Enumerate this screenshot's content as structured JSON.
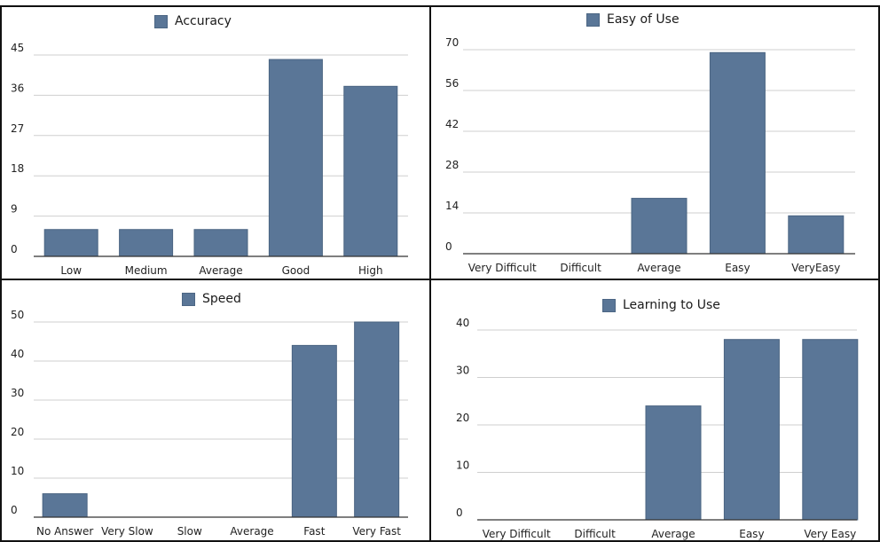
{
  "colors": {
    "bar": "#5a7697",
    "bar_edge": "#4a6482",
    "grid": "#cfcfcf",
    "axis": "#333333",
    "border": "#111111"
  },
  "chart_data": [
    {
      "type": "bar",
      "legend": "Accuracy",
      "categories": [
        "Low",
        "Medium",
        "Average",
        "Good",
        "High"
      ],
      "values": [
        6,
        6,
        6,
        44,
        38
      ],
      "yticks": [
        "0",
        "9",
        "18",
        "27",
        "36",
        "45"
      ],
      "ylim": [
        0,
        45
      ],
      "grid": true,
      "legend_position": "top-center"
    },
    {
      "type": "bar",
      "legend": "Easy of Use",
      "categories": [
        "Very Difficult",
        "Difficult",
        "Average",
        "Easy",
        "VeryEasy"
      ],
      "values": [
        0,
        0,
        19,
        69,
        13
      ],
      "yticks": [
        "0",
        "14",
        "28",
        "42",
        "56",
        "70"
      ],
      "ylim": [
        0,
        70
      ],
      "grid": true,
      "legend_position": "top-center"
    },
    {
      "type": "bar",
      "legend": "Speed",
      "categories": [
        "No Answer",
        "Very Slow",
        "Slow",
        "Average",
        "Fast",
        "Very Fast"
      ],
      "values": [
        6,
        0,
        0,
        0,
        44,
        50
      ],
      "yticks": [
        "0",
        "10",
        "20",
        "30",
        "40",
        "50"
      ],
      "ylim": [
        0,
        50
      ],
      "grid": true,
      "legend_position": "top-center"
    },
    {
      "type": "bar",
      "legend": "Learning to Use",
      "categories": [
        "Very Difficult",
        "Difficult",
        "Average",
        "Easy",
        "Very Easy"
      ],
      "values": [
        0,
        0,
        24,
        38,
        38
      ],
      "yticks": [
        "0",
        "10",
        "20",
        "30",
        "40"
      ],
      "ylim": [
        0,
        40
      ],
      "grid": true,
      "legend_position": "top-center"
    }
  ]
}
